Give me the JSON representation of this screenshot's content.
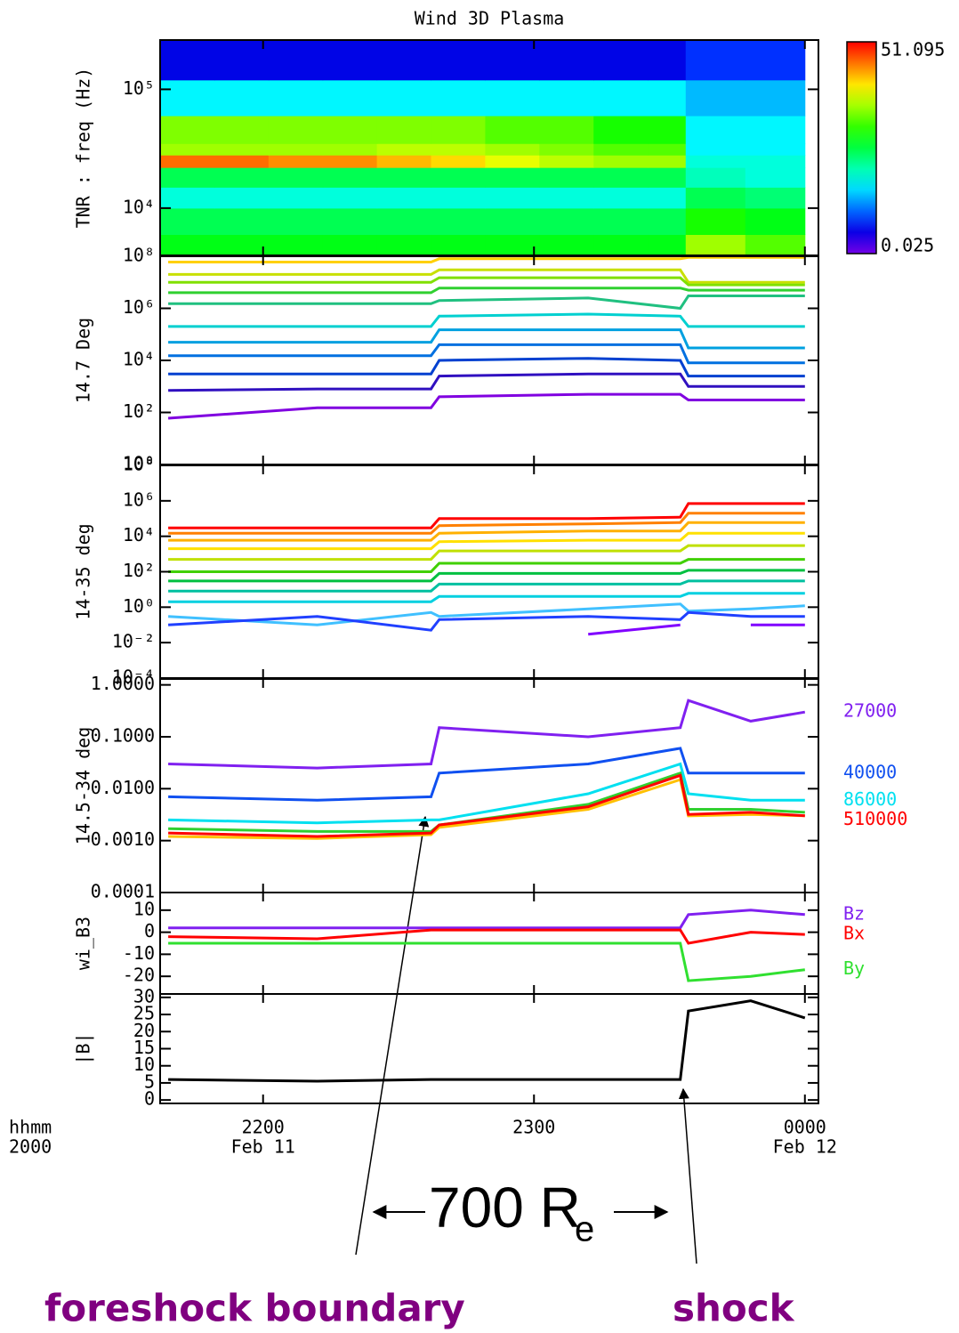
{
  "chart_data": [
    {
      "type": "spectrogram",
      "title": "Wind 3D Plasma",
      "ylabel": "TNR : freq (Hz)",
      "ylog": true,
      "xlim": [
        21.62,
        24.05
      ],
      "xticks": [
        22,
        23,
        24
      ],
      "ylim": [
        4000,
        260000
      ],
      "yticks": [
        {
          "value": 10000,
          "label": "10⁴"
        },
        {
          "value": 100000,
          "label": "10⁵"
        }
      ],
      "time_bins": [
        21.62,
        21.82,
        22.02,
        22.22,
        22.42,
        22.62,
        22.82,
        23.02,
        23.22,
        23.42,
        23.56,
        23.78,
        24.0
      ],
      "freq_bins": [
        4000,
        6000,
        10000,
        15000,
        22000,
        28000,
        35000,
        60000,
        120000,
        260000
      ],
      "z": [
        [
          1.5,
          1.5,
          1.5,
          1.5,
          1.5,
          1.5,
          1.5,
          1.5,
          1.5,
          1.5,
          5,
          3
        ],
        [
          1,
          1,
          1,
          1,
          1,
          1,
          1,
          1,
          1,
          1,
          2,
          1.5
        ],
        [
          0.4,
          0.4,
          0.4,
          0.4,
          0.4,
          0.4,
          0.4,
          0.4,
          0.4,
          0.4,
          1,
          0.8
        ],
        [
          1,
          1,
          1,
          1,
          1,
          1,
          1,
          1,
          1,
          1,
          0.5,
          0.4
        ],
        [
          25,
          25,
          20,
          20,
          15,
          12,
          8,
          6,
          5,
          5,
          0.4,
          0.4
        ],
        [
          5,
          5,
          5,
          5,
          6,
          6,
          5,
          4,
          3,
          3,
          0.3,
          0.3
        ],
        [
          4,
          4,
          4,
          4,
          4,
          4,
          3,
          3,
          2,
          2,
          0.3,
          0.3
        ],
        [
          0.3,
          0.3,
          0.3,
          0.3,
          0.3,
          0.3,
          0.3,
          0.3,
          0.3,
          0.3,
          0.2,
          0.2
        ],
        [
          0.06,
          0.06,
          0.06,
          0.06,
          0.06,
          0.06,
          0.06,
          0.06,
          0.06,
          0.06,
          0.08,
          0.08
        ]
      ],
      "zlim": [
        0.025,
        51.095
      ],
      "zlog": true
    },
    {
      "type": "line",
      "ylabel": "14.7 Deg",
      "ylog": true,
      "xlim": [
        21.62,
        24.05
      ],
      "xticks": [
        22,
        23,
        24
      ],
      "ylim": [
        1,
        100000000
      ],
      "yticks": [
        {
          "value": 1,
          "label": "10⁰"
        },
        {
          "value": 100,
          "label": "10²"
        },
        {
          "value": 10000,
          "label": "10⁴"
        },
        {
          "value": 1000000,
          "label": "10⁶"
        },
        {
          "value": 100000000,
          "label": "10⁸"
        }
      ],
      "x": [
        21.65,
        22.2,
        22.62,
        22.65,
        23.2,
        23.54,
        23.57,
        23.8,
        24.0
      ],
      "series": [
        {
          "color": "#ffd000",
          "values": [
            60000000,
            60000000,
            60000000,
            80000000,
            80000000,
            80000000,
            90000000,
            90000000,
            90000000
          ]
        },
        {
          "color": "#c8e000",
          "values": [
            20000000,
            20000000,
            20000000,
            30000000,
            30000000,
            30000000,
            10000000,
            10000000,
            10000000
          ]
        },
        {
          "color": "#80e000",
          "values": [
            10000000,
            10000000,
            10000000,
            15000000,
            15000000,
            15000000,
            8000000,
            8000000,
            8000000
          ]
        },
        {
          "color": "#30d030",
          "values": [
            4000000,
            4000000,
            4000000,
            6000000,
            6000000,
            6000000,
            5000000,
            5000000,
            5000000
          ]
        },
        {
          "color": "#20c080",
          "values": [
            1500000,
            1500000,
            1500000,
            2000000,
            2500000,
            1000000,
            3000000,
            3000000,
            3000000
          ]
        },
        {
          "color": "#00d0d0",
          "values": [
            200000,
            200000,
            200000,
            500000,
            600000,
            500000,
            200000,
            200000,
            200000
          ]
        },
        {
          "color": "#00a0e0",
          "values": [
            50000,
            50000,
            50000,
            150000,
            150000,
            150000,
            30000,
            30000,
            30000
          ]
        },
        {
          "color": "#0070e0",
          "values": [
            15000,
            15000,
            15000,
            40000,
            40000,
            40000,
            8000,
            8000,
            8000
          ]
        },
        {
          "color": "#0040d0",
          "values": [
            3000,
            3000,
            3000,
            10000,
            12000,
            10000,
            2500,
            2500,
            2500
          ]
        },
        {
          "color": "#3010c0",
          "values": [
            700,
            800,
            800,
            2500,
            3000,
            3000,
            1000,
            1000,
            1000
          ]
        },
        {
          "color": "#8000e0",
          "values": [
            60,
            150,
            150,
            400,
            500,
            500,
            300,
            300,
            300
          ]
        }
      ]
    },
    {
      "type": "line",
      "ylabel": "14-35 deg",
      "ylog": true,
      "xlim": [
        21.62,
        24.05
      ],
      "xticks": [
        22,
        23,
        24
      ],
      "ylim": [
        0.0001,
        100000000
      ],
      "yticks": [
        {
          "value": 0.0001,
          "label": "10⁻⁴"
        },
        {
          "value": 0.01,
          "label": "10⁻²"
        },
        {
          "value": 1,
          "label": "10⁰"
        },
        {
          "value": 100,
          "label": "10²"
        },
        {
          "value": 10000,
          "label": "10⁴"
        },
        {
          "value": 1000000,
          "label": "10⁶"
        },
        {
          "value": 100000000,
          "label": "10⁸"
        }
      ],
      "x": [
        21.65,
        22.2,
        22.62,
        22.65,
        23.2,
        23.54,
        23.57,
        23.8,
        24.0
      ],
      "series": [
        {
          "color": "#ff0000",
          "values": [
            30000,
            30000,
            30000,
            100000,
            100000,
            120000,
            700000,
            700000,
            700000
          ]
        },
        {
          "color": "#ff8000",
          "values": [
            15000,
            15000,
            15000,
            40000,
            50000,
            60000,
            200000,
            200000,
            200000
          ]
        },
        {
          "color": "#ffb000",
          "values": [
            6000,
            6000,
            6000,
            15000,
            20000,
            20000,
            60000,
            60000,
            60000
          ]
        },
        {
          "color": "#ffe000",
          "values": [
            2000,
            2000,
            2000,
            5000,
            6000,
            6000,
            15000,
            15000,
            15000
          ]
        },
        {
          "color": "#c0e000",
          "values": [
            500,
            500,
            500,
            1500,
            1500,
            1500,
            3000,
            3000,
            3000
          ]
        },
        {
          "color": "#40d000",
          "values": [
            100,
            100,
            100,
            300,
            300,
            300,
            500,
            500,
            500
          ]
        },
        {
          "color": "#00c040",
          "values": [
            30,
            30,
            30,
            80,
            80,
            80,
            120,
            120,
            120
          ]
        },
        {
          "color": "#00c0a0",
          "values": [
            8,
            8,
            8,
            20,
            20,
            20,
            30,
            30,
            30
          ]
        },
        {
          "color": "#00d0e0",
          "values": [
            2,
            2,
            2,
            4,
            4,
            4,
            6,
            6,
            6
          ]
        },
        {
          "color": "#40c0ff",
          "values": [
            0.3,
            0.1,
            0.5,
            0.3,
            0.8,
            1.5,
            0.6,
            0.8,
            1.2
          ]
        },
        {
          "color": "#2040ff",
          "values": [
            0.1,
            0.3,
            0.05,
            0.2,
            0.3,
            0.2,
            0.5,
            0.3,
            0.3
          ]
        },
        {
          "color": "#8000ff",
          "values": [
            0.05,
            null,
            0.02,
            null,
            0.03,
            0.1,
            null,
            0.1,
            0.1
          ]
        }
      ]
    },
    {
      "type": "line",
      "ylabel": "14.5-34 deg",
      "ylog": true,
      "xlim": [
        21.62,
        24.05
      ],
      "xticks": [
        22,
        23,
        24
      ],
      "ylim": [
        0.0001,
        1.3
      ],
      "yticks": [
        {
          "value": 0.0001,
          "label": "0.0001"
        },
        {
          "value": 0.001,
          "label": "0.0010"
        },
        {
          "value": 0.01,
          "label": "0.0100"
        },
        {
          "value": 0.1,
          "label": "0.1000"
        },
        {
          "value": 1,
          "label": "1.0000"
        }
      ],
      "x": [
        21.65,
        22.2,
        22.62,
        22.65,
        23.2,
        23.54,
        23.57,
        23.8,
        24.0
      ],
      "series": [
        {
          "name": "27000",
          "color": "#8020f0",
          "values": [
            0.03,
            0.025,
            0.03,
            0.15,
            0.1,
            0.15,
            0.5,
            0.2,
            0.3
          ]
        },
        {
          "name": "40000",
          "color": "#1050f0",
          "values": [
            0.007,
            0.006,
            0.007,
            0.02,
            0.03,
            0.06,
            0.02,
            0.02,
            0.02
          ]
        },
        {
          "name": "86000",
          "color": "#00e0f0",
          "values": [
            0.0025,
            0.0022,
            0.0025,
            0.0025,
            0.008,
            0.03,
            0.008,
            0.006,
            0.006
          ]
        },
        {
          "color": "#30d030",
          "values": [
            0.0017,
            0.0015,
            0.0015,
            0.002,
            0.005,
            0.02,
            0.004,
            0.004,
            0.0035
          ]
        },
        {
          "color": "#ffc000",
          "values": [
            0.0012,
            0.0011,
            0.0013,
            0.0018,
            0.004,
            0.015,
            0.003,
            0.0032,
            0.003
          ]
        },
        {
          "name": "510000",
          "color": "#ff0000",
          "values": [
            0.0014,
            0.0012,
            0.0014,
            0.002,
            0.0045,
            0.018,
            0.0032,
            0.0035,
            0.003
          ]
        }
      ]
    },
    {
      "type": "line",
      "ylabel": "wi_B3",
      "xlim": [
        21.62,
        24.05
      ],
      "xticks": [
        22,
        23,
        24
      ],
      "ylim": [
        -28,
        18
      ],
      "yticks": [
        -20,
        -10,
        0,
        10
      ],
      "x": [
        21.65,
        22.2,
        22.62,
        22.65,
        23.2,
        23.54,
        23.57,
        23.8,
        24.0
      ],
      "series": [
        {
          "name": "Bz",
          "color": "#8020f0",
          "values": [
            2,
            2,
            2,
            2,
            2,
            2,
            8,
            10,
            8
          ]
        },
        {
          "name": "Bx",
          "color": "#ff0000",
          "values": [
            -2,
            -3,
            1,
            1,
            1,
            1,
            -5,
            0,
            -1
          ]
        },
        {
          "name": "By",
          "color": "#30e030",
          "values": [
            -5,
            -5,
            -5,
            -5,
            -5,
            -5,
            -22,
            -20,
            -17
          ]
        }
      ]
    },
    {
      "type": "line",
      "ylabel": "|B|",
      "xlim": [
        21.62,
        24.05
      ],
      "xticks": [
        {
          "value": 22,
          "label": "2200"
        },
        {
          "value": 23,
          "label": "2300"
        },
        {
          "value": 24,
          "label": "0000"
        }
      ],
      "xtick_sublabels": [
        "Feb 11",
        null,
        "Feb 12"
      ],
      "ylim": [
        -1,
        31
      ],
      "yticks": [
        0,
        5,
        10,
        15,
        20,
        25,
        30
      ],
      "x": [
        21.65,
        22.2,
        22.62,
        22.65,
        23.2,
        23.54,
        23.57,
        23.8,
        24.0
      ],
      "series": [
        {
          "color": "#000000",
          "values": [
            6,
            5.5,
            6,
            6,
            6,
            6,
            26,
            29,
            24
          ]
        }
      ]
    }
  ],
  "annotations": {
    "time_format": "hhmm",
    "year": "2000",
    "distance": "700 R",
    "distance_subscript": "e",
    "foreshock": "foreshock boundary",
    "shock": "shock"
  }
}
